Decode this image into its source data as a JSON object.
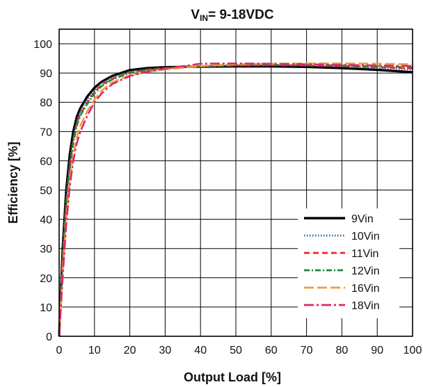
{
  "chart_data": {
    "type": "line",
    "title": {
      "main": "V",
      "sub": "IN",
      "rest": "= 9-18VDC"
    },
    "xlabel": "Output Load [%]",
    "ylabel": "Efficiency [%]",
    "xlim": [
      0,
      100
    ],
    "ylim": [
      0,
      105
    ],
    "xticks": [
      0,
      10,
      20,
      30,
      40,
      50,
      60,
      70,
      80,
      90,
      100
    ],
    "yticks": [
      0,
      10,
      20,
      30,
      40,
      50,
      60,
      70,
      80,
      90,
      100
    ],
    "grid": true,
    "legend_position": "bottom-right",
    "series": [
      {
        "name": "9Vin",
        "color": "#000000",
        "style": "solid",
        "x": [
          0,
          1,
          2,
          3,
          4,
          5,
          6,
          8,
          10,
          12,
          15,
          20,
          25,
          30,
          40,
          50,
          60,
          70,
          80,
          90,
          100
        ],
        "y": [
          0,
          30,
          50,
          62,
          70,
          75,
          78,
          82,
          85,
          87,
          89,
          91,
          91.7,
          92,
          92.2,
          92.3,
          92.3,
          92.1,
          91.7,
          91.1,
          90.3
        ]
      },
      {
        "name": "10Vin",
        "color": "#2e5aa8",
        "style": "dotted",
        "x": [
          0,
          1,
          2,
          3,
          4,
          5,
          6,
          8,
          10,
          12,
          15,
          20,
          25,
          30,
          40,
          50,
          60,
          70,
          80,
          90,
          100
        ],
        "y": [
          0,
          28,
          48,
          60,
          68,
          74,
          77,
          81,
          84,
          86.5,
          88.5,
          90.5,
          91.3,
          91.8,
          92.3,
          92.5,
          92.6,
          92.5,
          92.2,
          91.8,
          91.2
        ]
      },
      {
        "name": "11Vin",
        "color": "#e8262b",
        "style": "dashed",
        "x": [
          0,
          1,
          2,
          3,
          4,
          5,
          6,
          8,
          10,
          12,
          15,
          20,
          25,
          30,
          40,
          50,
          60,
          70,
          80,
          90,
          100
        ],
        "y": [
          0,
          27,
          46,
          58,
          67,
          73,
          76,
          80,
          83.5,
          86,
          88,
          90.2,
          91.2,
          91.7,
          92.3,
          92.6,
          92.7,
          92.6,
          92.4,
          92,
          91.6
        ]
      },
      {
        "name": "12Vin",
        "color": "#1a8a3a",
        "style": "dashdot",
        "x": [
          0,
          1,
          2,
          3,
          4,
          5,
          6,
          8,
          10,
          12,
          15,
          20,
          25,
          30,
          40,
          50,
          60,
          70,
          80,
          90,
          100
        ],
        "y": [
          0,
          26,
          45,
          57,
          66,
          72,
          75.5,
          79.5,
          83,
          85.5,
          87.8,
          90,
          91,
          91.6,
          92.3,
          92.7,
          92.8,
          92.8,
          92.6,
          92.3,
          92
        ]
      },
      {
        "name": "16Vin",
        "color": "#f39a3a",
        "style": "longdash",
        "x": [
          0,
          1,
          2,
          3,
          4,
          5,
          6,
          8,
          10,
          12,
          15,
          20,
          25,
          30,
          40,
          50,
          60,
          70,
          80,
          90,
          100
        ],
        "y": [
          0,
          22,
          40,
          53,
          62,
          68,
          72,
          77,
          81,
          84,
          86.8,
          89.2,
          90.4,
          91.2,
          92.4,
          93,
          93.2,
          93.3,
          93.3,
          93.2,
          93
        ]
      },
      {
        "name": "18Vin",
        "color": "#e2256f",
        "style": "longdashdot",
        "x": [
          0,
          1,
          2,
          3,
          4,
          5,
          6,
          8,
          10,
          12,
          15,
          20,
          25,
          30,
          40,
          50,
          60,
          70,
          80,
          90,
          100
        ],
        "y": [
          0,
          20,
          38,
          51,
          60,
          66,
          70,
          75.5,
          80,
          83,
          86.2,
          89,
          90.5,
          91.5,
          93.2,
          93.3,
          93.2,
          93,
          92.8,
          92.6,
          92.4
        ]
      }
    ]
  }
}
